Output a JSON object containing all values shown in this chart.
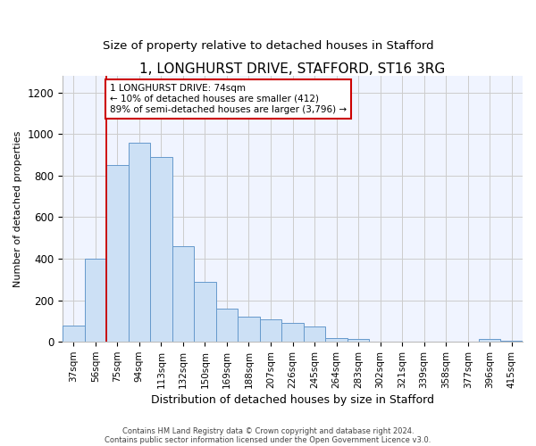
{
  "title": "1, LONGHURST DRIVE, STAFFORD, ST16 3RG",
  "subtitle": "Size of property relative to detached houses in Stafford",
  "xlabel": "Distribution of detached houses by size in Stafford",
  "ylabel": "Number of detached properties",
  "categories": [
    "37sqm",
    "56sqm",
    "75sqm",
    "94sqm",
    "113sqm",
    "132sqm",
    "150sqm",
    "169sqm",
    "188sqm",
    "207sqm",
    "226sqm",
    "245sqm",
    "264sqm",
    "283sqm",
    "302sqm",
    "321sqm",
    "339sqm",
    "358sqm",
    "377sqm",
    "396sqm",
    "415sqm"
  ],
  "values": [
    80,
    400,
    850,
    960,
    890,
    460,
    290,
    160,
    120,
    110,
    90,
    75,
    20,
    15,
    2,
    2,
    2,
    2,
    2,
    15,
    5
  ],
  "bar_color": "#cce0f5",
  "bar_edge_color": "#6699cc",
  "ylim": [
    0,
    1280
  ],
  "yticks": [
    0,
    200,
    400,
    600,
    800,
    1000,
    1200
  ],
  "vline_x": 2.0,
  "annotation_text": "1 LONGHURST DRIVE: 74sqm\n← 10% of detached houses are smaller (412)\n89% of semi-detached houses are larger (3,796) →",
  "annotation_box_color": "#ffffff",
  "annotation_box_edge": "#cc0000",
  "footnote1": "Contains HM Land Registry data © Crown copyright and database right 2024.",
  "footnote2": "Contains public sector information licensed under the Open Government Licence v3.0.",
  "background_color": "#f0f4ff",
  "grid_color": "#cccccc",
  "title_fontsize": 11,
  "subtitle_fontsize": 9.5,
  "xlabel_fontsize": 9,
  "ylabel_fontsize": 8,
  "tick_fontsize": 7.5,
  "footnote_fontsize": 6
}
